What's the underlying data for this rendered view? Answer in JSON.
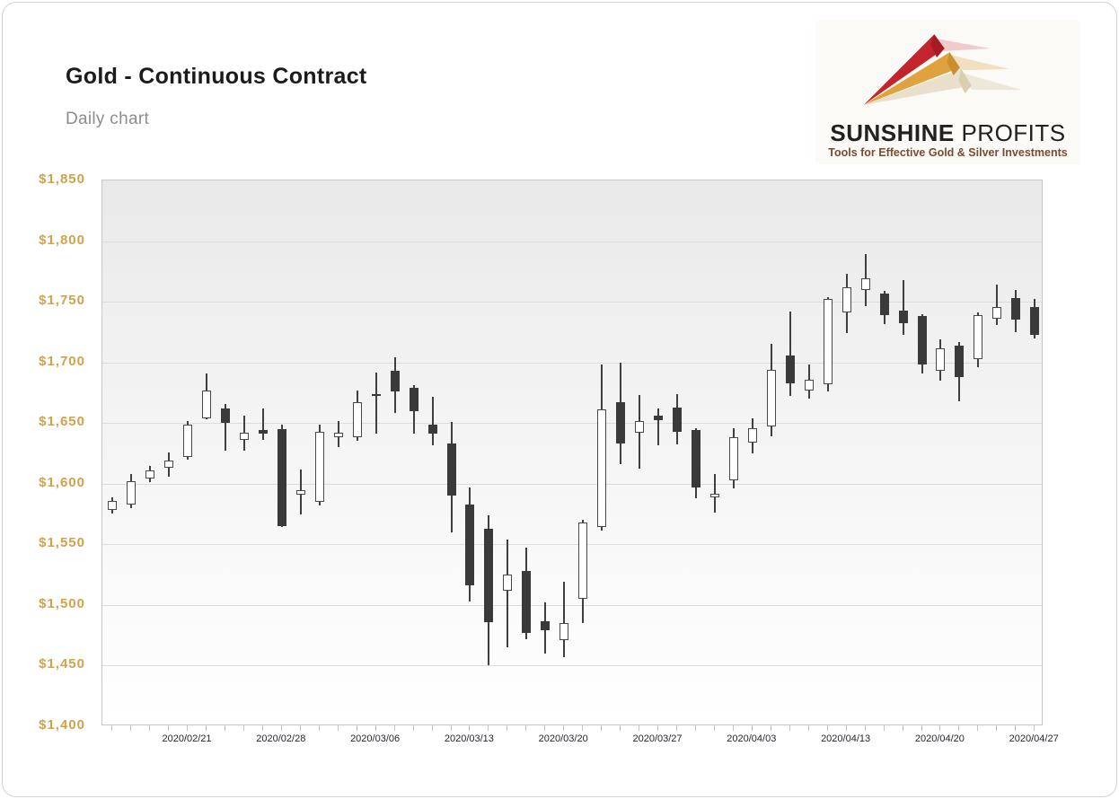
{
  "header": {
    "title": "Gold - Continuous Contract",
    "subtitle": "Daily chart"
  },
  "logo": {
    "brand_bold": "SUNSHINE",
    "brand_light": "PROFITS",
    "tagline": "Tools for Effective Gold & Silver Investments",
    "arrow_colors": {
      "red": "#c4242b",
      "gold": "#dfa23f",
      "cream": "#e8e0cb"
    }
  },
  "colors": {
    "y_label": "#d5a04a",
    "x_label": "#262630",
    "candle_down_fill": "#3a3a3a",
    "candle_up_fill": "#ffffff",
    "candle_border": "#484848",
    "gridline": "#dcdcdc",
    "plot_border": "#c6c6c6"
  },
  "chart_data": {
    "type": "candlestick",
    "title": "Gold - Continuous Contract",
    "subtitle": "Daily chart",
    "grid": true,
    "y_axis": {
      "min": 1400,
      "max": 1850,
      "step": 50,
      "labels": [
        "$1,850",
        "$1,800",
        "$1,750",
        "$1,700",
        "$1,650",
        "$1,600",
        "$1,550",
        "$1,500",
        "$1,450",
        "$1,400"
      ]
    },
    "x_axis": {
      "tick_labels": [
        {
          "label": "2020/02/21",
          "index": 4
        },
        {
          "label": "2020/02/28",
          "index": 9
        },
        {
          "label": "2020/03/06",
          "index": 14
        },
        {
          "label": "2020/03/13",
          "index": 19
        },
        {
          "label": "2020/03/20",
          "index": 24
        },
        {
          "label": "2020/03/27",
          "index": 29
        },
        {
          "label": "2020/04/03",
          "index": 34
        },
        {
          "label": "2020/04/13",
          "index": 39
        },
        {
          "label": "2020/04/20",
          "index": 44
        },
        {
          "label": "2020/04/27",
          "index": 49
        }
      ]
    },
    "candles": [
      {
        "date": "2020/02/17",
        "open": 1578,
        "high": 1589,
        "low": 1575,
        "close": 1586
      },
      {
        "date": "2020/02/18",
        "open": 1583,
        "high": 1608,
        "low": 1580,
        "close": 1602
      },
      {
        "date": "2020/02/19",
        "open": 1604,
        "high": 1615,
        "low": 1601,
        "close": 1611
      },
      {
        "date": "2020/02/20",
        "open": 1613,
        "high": 1626,
        "low": 1606,
        "close": 1619
      },
      {
        "date": "2020/02/21",
        "open": 1622,
        "high": 1652,
        "low": 1620,
        "close": 1649
      },
      {
        "date": "2020/02/24",
        "open": 1654,
        "high": 1691,
        "low": 1653,
        "close": 1677
      },
      {
        "date": "2020/02/25",
        "open": 1662,
        "high": 1666,
        "low": 1627,
        "close": 1650
      },
      {
        "date": "2020/02/26",
        "open": 1636,
        "high": 1656,
        "low": 1627,
        "close": 1642
      },
      {
        "date": "2020/02/27",
        "open": 1644,
        "high": 1662,
        "low": 1636,
        "close": 1641
      },
      {
        "date": "2020/02/28",
        "open": 1645,
        "high": 1649,
        "low": 1564,
        "close": 1565
      },
      {
        "date": "2020/03/02",
        "open": 1591,
        "high": 1612,
        "low": 1575,
        "close": 1595
      },
      {
        "date": "2020/03/03",
        "open": 1585,
        "high": 1649,
        "low": 1582,
        "close": 1643
      },
      {
        "date": "2020/03/04",
        "open": 1638,
        "high": 1652,
        "low": 1630,
        "close": 1642
      },
      {
        "date": "2020/03/05",
        "open": 1638,
        "high": 1677,
        "low": 1635,
        "close": 1667
      },
      {
        "date": "2020/03/06",
        "open": 1674,
        "high": 1692,
        "low": 1641,
        "close": 1672
      },
      {
        "date": "2020/03/09",
        "open": 1693,
        "high": 1704,
        "low": 1658,
        "close": 1676
      },
      {
        "date": "2020/03/10",
        "open": 1679,
        "high": 1681,
        "low": 1641,
        "close": 1660
      },
      {
        "date": "2020/03/11",
        "open": 1649,
        "high": 1672,
        "low": 1632,
        "close": 1641
      },
      {
        "date": "2020/03/12",
        "open": 1633,
        "high": 1651,
        "low": 1560,
        "close": 1590
      },
      {
        "date": "2020/03/13",
        "open": 1583,
        "high": 1597,
        "low": 1503,
        "close": 1516
      },
      {
        "date": "2020/03/16",
        "open": 1563,
        "high": 1574,
        "low": 1450,
        "close": 1486
      },
      {
        "date": "2020/03/17",
        "open": 1512,
        "high": 1554,
        "low": 1465,
        "close": 1525
      },
      {
        "date": "2020/03/18",
        "open": 1528,
        "high": 1547,
        "low": 1472,
        "close": 1477
      },
      {
        "date": "2020/03/19",
        "open": 1487,
        "high": 1502,
        "low": 1460,
        "close": 1479
      },
      {
        "date": "2020/03/20",
        "open": 1471,
        "high": 1519,
        "low": 1457,
        "close": 1485
      },
      {
        "date": "2020/03/23",
        "open": 1505,
        "high": 1570,
        "low": 1485,
        "close": 1568
      },
      {
        "date": "2020/03/24",
        "open": 1564,
        "high": 1698,
        "low": 1561,
        "close": 1661
      },
      {
        "date": "2020/03/25",
        "open": 1667,
        "high": 1700,
        "low": 1616,
        "close": 1633
      },
      {
        "date": "2020/03/26",
        "open": 1642,
        "high": 1673,
        "low": 1612,
        "close": 1652
      },
      {
        "date": "2020/03/27",
        "open": 1656,
        "high": 1662,
        "low": 1632,
        "close": 1652
      },
      {
        "date": "2020/03/30",
        "open": 1663,
        "high": 1674,
        "low": 1632,
        "close": 1643
      },
      {
        "date": "2020/03/31",
        "open": 1644,
        "high": 1646,
        "low": 1588,
        "close": 1597
      },
      {
        "date": "2020/04/01",
        "open": 1589,
        "high": 1608,
        "low": 1576,
        "close": 1592
      },
      {
        "date": "2020/04/02",
        "open": 1603,
        "high": 1646,
        "low": 1596,
        "close": 1638
      },
      {
        "date": "2020/04/03",
        "open": 1634,
        "high": 1654,
        "low": 1625,
        "close": 1646
      },
      {
        "date": "2020/04/06",
        "open": 1647,
        "high": 1715,
        "low": 1639,
        "close": 1694
      },
      {
        "date": "2020/04/07",
        "open": 1706,
        "high": 1742,
        "low": 1672,
        "close": 1683
      },
      {
        "date": "2020/04/08",
        "open": 1677,
        "high": 1698,
        "low": 1670,
        "close": 1686
      },
      {
        "date": "2020/04/09",
        "open": 1682,
        "high": 1754,
        "low": 1676,
        "close": 1752
      },
      {
        "date": "2020/04/13",
        "open": 1741,
        "high": 1773,
        "low": 1724,
        "close": 1762
      },
      {
        "date": "2020/04/14",
        "open": 1760,
        "high": 1789,
        "low": 1746,
        "close": 1769
      },
      {
        "date": "2020/04/15",
        "open": 1757,
        "high": 1759,
        "low": 1732,
        "close": 1739
      },
      {
        "date": "2020/04/16",
        "open": 1743,
        "high": 1768,
        "low": 1723,
        "close": 1732
      },
      {
        "date": "2020/04/17",
        "open": 1738,
        "high": 1740,
        "low": 1691,
        "close": 1698
      },
      {
        "date": "2020/04/20",
        "open": 1693,
        "high": 1719,
        "low": 1685,
        "close": 1712
      },
      {
        "date": "2020/04/21",
        "open": 1714,
        "high": 1717,
        "low": 1668,
        "close": 1688
      },
      {
        "date": "2020/04/22",
        "open": 1703,
        "high": 1741,
        "low": 1696,
        "close": 1739
      },
      {
        "date": "2020/04/23",
        "open": 1736,
        "high": 1764,
        "low": 1731,
        "close": 1746
      },
      {
        "date": "2020/04/24",
        "open": 1753,
        "high": 1760,
        "low": 1725,
        "close": 1735
      },
      {
        "date": "2020/04/27",
        "open": 1746,
        "high": 1752,
        "low": 1720,
        "close": 1723
      }
    ]
  }
}
